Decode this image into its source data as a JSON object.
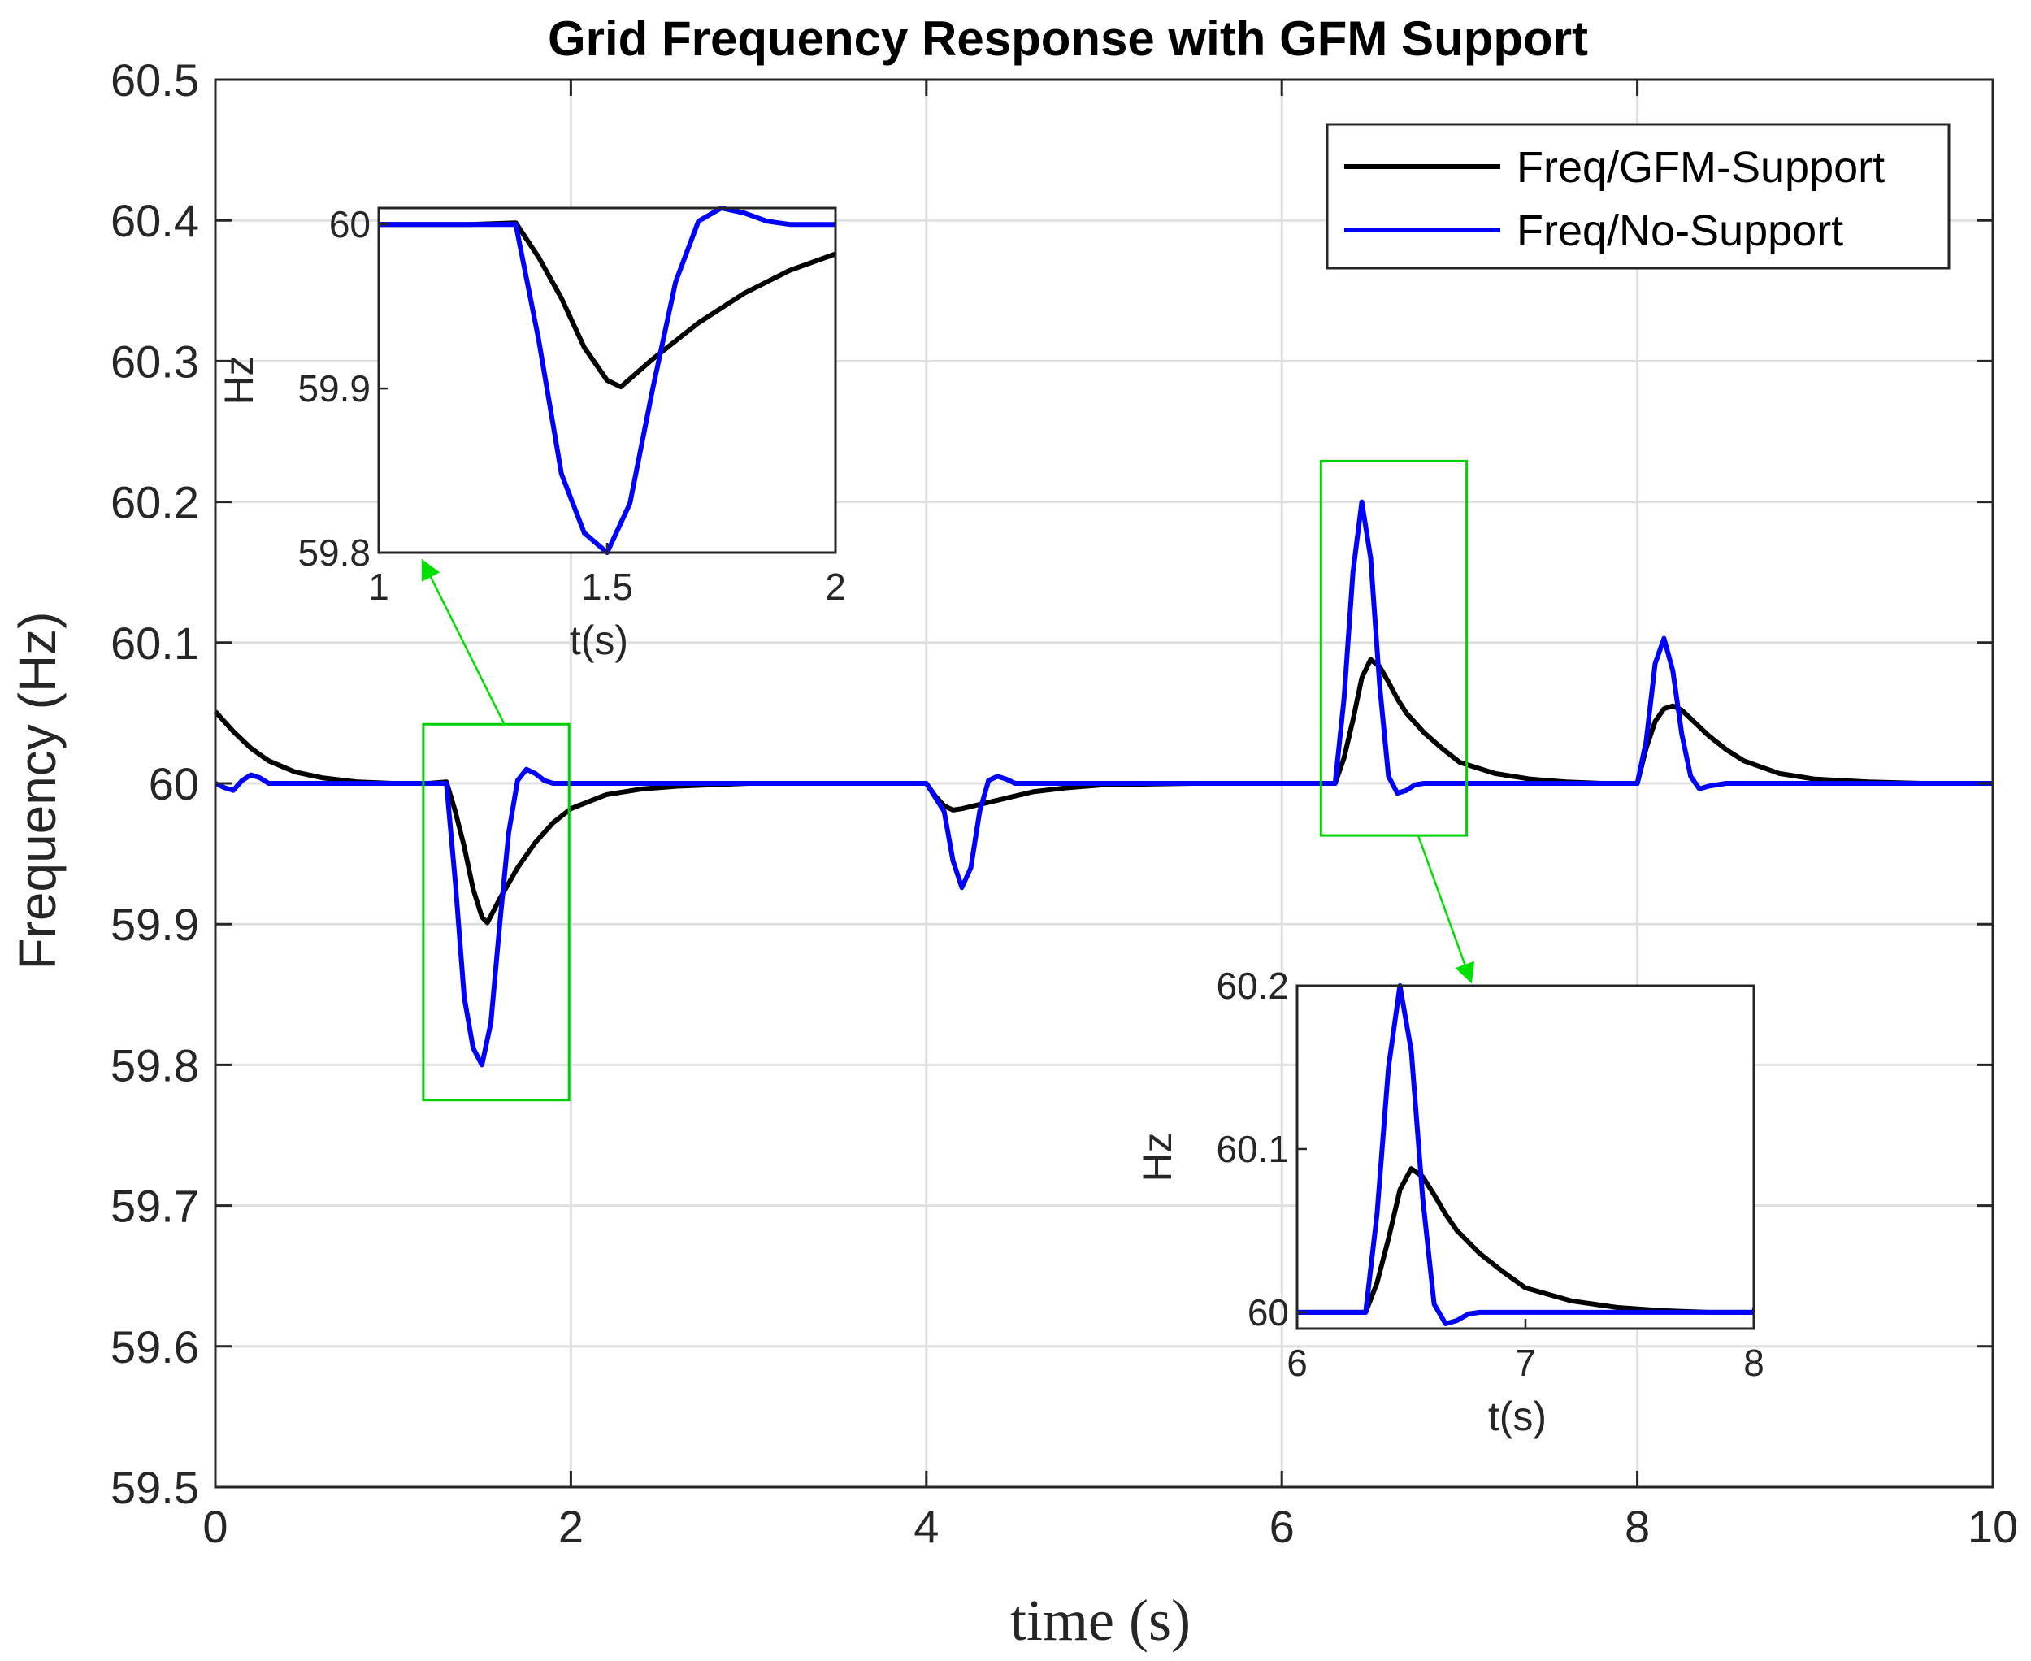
{
  "chart_data": {
    "type": "line",
    "title": "Grid Frequency Response with GFM Support",
    "xlabel": "time (s)",
    "ylabel": "Frequency (Hz)",
    "xlim": [
      0,
      10
    ],
    "ylim": [
      59.5,
      60.5
    ],
    "xticks": [
      0,
      2,
      4,
      6,
      8,
      10
    ],
    "yticks": [
      59.5,
      59.6,
      59.7,
      59.8,
      59.9,
      60,
      60.1,
      60.2,
      60.3,
      60.4,
      60.5
    ],
    "xtick_labels": [
      "0",
      "2",
      "4",
      "6",
      "8",
      "10"
    ],
    "ytick_labels": [
      "59.5",
      "59.6",
      "59.7",
      "59.8",
      "59.9",
      "60",
      "60.1",
      "60.2",
      "60.3",
      "60.4",
      "60.5"
    ],
    "grid": true,
    "legend": {
      "location": "top-right",
      "entries": [
        "Freq/GFM-Support",
        "Freq/No-Support"
      ]
    },
    "series": [
      {
        "name": "Freq/GFM-Support",
        "color": "#000000",
        "x": [
          0,
          0.1,
          0.2,
          0.3,
          0.45,
          0.6,
          0.8,
          1.0,
          1.2,
          1.3,
          1.35,
          1.4,
          1.45,
          1.5,
          1.53,
          1.6,
          1.7,
          1.8,
          1.9,
          2.0,
          2.2,
          2.4,
          2.6,
          3.0,
          3.5,
          4.0,
          4.05,
          4.1,
          4.15,
          4.2,
          4.3,
          4.4,
          4.5,
          4.6,
          4.8,
          5.0,
          5.5,
          6.0,
          6.3,
          6.35,
          6.4,
          6.45,
          6.5,
          6.55,
          6.6,
          6.65,
          6.7,
          6.8,
          6.9,
          7.0,
          7.2,
          7.4,
          7.6,
          7.8,
          8.0,
          8.05,
          8.1,
          8.15,
          8.2,
          8.25,
          8.3,
          8.4,
          8.5,
          8.6,
          8.8,
          9.0,
          9.3,
          9.6,
          10.0
        ],
        "values": [
          60.051,
          60.037,
          60.025,
          60.016,
          60.008,
          60.004,
          60.001,
          60.0,
          60.0,
          60.001,
          59.98,
          59.955,
          59.925,
          59.905,
          59.901,
          59.918,
          59.94,
          59.958,
          59.972,
          59.982,
          59.992,
          59.996,
          59.998,
          60.0,
          60.0,
          60.0,
          59.991,
          59.984,
          59.981,
          59.982,
          59.985,
          59.988,
          59.991,
          59.994,
          59.997,
          59.999,
          60.0,
          60.0,
          60.0,
          60.018,
          60.045,
          60.075,
          60.088,
          60.083,
          60.072,
          60.06,
          60.05,
          60.036,
          60.025,
          60.015,
          60.007,
          60.003,
          60.001,
          60.0,
          60.0,
          60.025,
          60.044,
          60.053,
          60.055,
          60.052,
          60.046,
          60.034,
          60.024,
          60.016,
          60.007,
          60.003,
          60.001,
          60.0,
          60.0
        ]
      },
      {
        "name": "Freq/No-Support",
        "color": "#0000FF",
        "x": [
          0,
          0.05,
          0.1,
          0.15,
          0.2,
          0.25,
          0.3,
          0.4,
          0.5,
          1.0,
          1.3,
          1.35,
          1.4,
          1.45,
          1.5,
          1.55,
          1.6,
          1.65,
          1.7,
          1.75,
          1.8,
          1.85,
          1.9,
          2.0,
          2.1,
          3.0,
          4.0,
          4.1,
          4.15,
          4.2,
          4.25,
          4.3,
          4.35,
          4.4,
          4.45,
          4.5,
          4.6,
          4.7,
          5.0,
          6.0,
          6.3,
          6.35,
          6.4,
          6.45,
          6.5,
          6.55,
          6.6,
          6.65,
          6.7,
          6.75,
          6.8,
          6.9,
          7.0,
          7.1,
          8.0,
          8.05,
          8.1,
          8.15,
          8.2,
          8.25,
          8.3,
          8.35,
          8.4,
          8.5,
          8.6,
          8.7,
          10.0
        ],
        "values": [
          60.0,
          59.997,
          59.995,
          60.002,
          60.006,
          60.004,
          60.0,
          60.0,
          60.0,
          60.0,
          60.0,
          59.93,
          59.848,
          59.812,
          59.8,
          59.83,
          59.9,
          59.965,
          60.002,
          60.01,
          60.007,
          60.002,
          60.0,
          60.0,
          60.0,
          60.0,
          60.0,
          59.98,
          59.945,
          59.926,
          59.94,
          59.98,
          60.002,
          60.005,
          60.003,
          60.0,
          60.0,
          60.0,
          60.0,
          60.0,
          60.0,
          60.06,
          60.15,
          60.2,
          60.16,
          60.07,
          60.005,
          59.993,
          59.995,
          59.999,
          60.0,
          60.0,
          60.0,
          60.0,
          60.0,
          60.03,
          60.085,
          60.103,
          60.08,
          60.035,
          60.005,
          59.996,
          59.998,
          60.0,
          60.0,
          60.0,
          60.0
        ]
      }
    ],
    "insets": [
      {
        "xlabel": "t(s)",
        "ylabel": "Hz",
        "xlim": [
          1,
          2
        ],
        "ylim": [
          59.8,
          60.01
        ],
        "xtick_labels": [
          "1",
          "1.5",
          "2"
        ],
        "ytick_labels": [
          "59.8",
          "59.9",
          "60"
        ],
        "zoom_box_x": [
          1.17,
          1.99
        ],
        "zoom_box_y": [
          59.775,
          60.042
        ]
      },
      {
        "xlabel": "t(s)",
        "ylabel": "Hz",
        "xlim": [
          6,
          8
        ],
        "ylim": [
          59.99,
          60.2
        ],
        "xtick_labels": [
          "6",
          "7",
          "8"
        ],
        "ytick_labels": [
          "60",
          "60.1",
          "60.2"
        ],
        "zoom_box_x": [
          6.22,
          7.04
        ],
        "zoom_box_y": [
          59.963,
          60.229
        ]
      }
    ]
  }
}
